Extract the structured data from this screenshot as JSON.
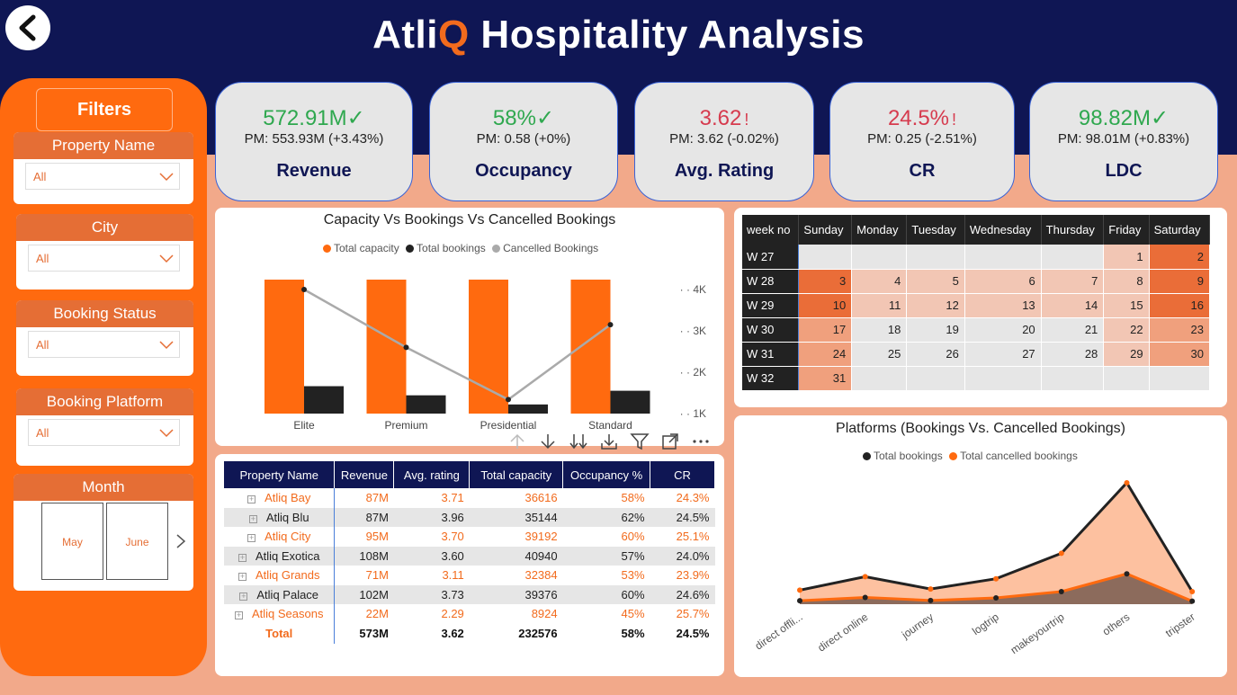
{
  "header": {
    "title_prefix": "Atli",
    "title_q": "Q",
    "title_rest": " Hospitality Analysis",
    "back_icon": "chevron-left-icon"
  },
  "filters": {
    "title": "Filters",
    "property_name": {
      "label": "Property Name",
      "value": "All"
    },
    "city": {
      "label": "City",
      "value": "All"
    },
    "booking_status": {
      "label": "Booking Status",
      "value": "All"
    },
    "booking_platform": {
      "label": "Booking Platform",
      "value": "All"
    },
    "month": {
      "label": "Month",
      "options": [
        "May",
        "June"
      ]
    }
  },
  "kpis": [
    {
      "value": "572.91M",
      "status": "good",
      "icon": "✓",
      "pm": "PM: 553.93M (+3.43%)",
      "label": "Revenue"
    },
    {
      "value": "58%",
      "status": "good",
      "icon": "✓",
      "pm": "PM: 0.58 (+0%)",
      "label": "Occupancy"
    },
    {
      "value": "3.62",
      "status": "bad",
      "icon": "!",
      "pm": "PM: 3.62 (-0.02%)",
      "label": "Avg. Rating"
    },
    {
      "value": "24.5%",
      "status": "bad",
      "icon": "!",
      "pm": "PM: 0.25 (-2.51%)",
      "label": "CR"
    },
    {
      "value": "98.82M",
      "status": "good",
      "icon": "✓",
      "pm": "PM: 98.01M (+0.83%)",
      "label": "LDC"
    }
  ],
  "colors": {
    "navy": "#0f1654",
    "orange": "#ff6a0f",
    "peach": "#f2a98a",
    "good": "#2fa84f",
    "bad": "#d63b4e"
  },
  "chart_data": [
    {
      "type": "bar",
      "title": "Capacity Vs Bookings Vs Cancelled Bookings",
      "categories": [
        "Elite",
        "Premium",
        "Presidential",
        "Standard"
      ],
      "series": [
        {
          "name": "Total capacity",
          "values": [
            44000,
            44000,
            44000,
            44000
          ],
          "color": "#ff6a0f"
        },
        {
          "name": "Total bookings",
          "values": [
            3000,
            2000,
            1000,
            2500
          ],
          "color": "#222222"
        },
        {
          "name": "Cancelled Bookings",
          "values": [
            4000,
            2600,
            1340,
            3150
          ],
          "color": "#aaaaaa",
          "axis": "secondary",
          "render": "line"
        }
      ],
      "y2_ticks": [
        "1K",
        "2K",
        "3K",
        "4K"
      ],
      "y2lim": [
        1000,
        4000
      ],
      "legend_position": "top"
    },
    {
      "type": "area",
      "title": "Platforms (Bookings Vs. Cancelled Bookings)",
      "categories": [
        "direct offli...",
        "direct online",
        "journey",
        "logtrip",
        "makeyourtrip",
        "others",
        "tripster"
      ],
      "series": [
        {
          "name": "Total bookings",
          "values": [
            6000,
            11800,
            6500,
            10900,
            21800,
            52000,
            5400
          ],
          "color": "#222222"
        },
        {
          "name": "Total cancelled bookings",
          "values": [
            1500,
            2900,
            1600,
            2700,
            5400,
            13000,
            1300
          ],
          "color": "#ff6a0f"
        }
      ],
      "legend_position": "top"
    }
  ],
  "property_table": {
    "headers": [
      "Property Name",
      "Revenue",
      "Avg. rating",
      "Total capacity",
      "Occupancy %",
      "CR"
    ],
    "rows": [
      {
        "name": "Atliq Bay",
        "revenue": "87M",
        "rating": "3.71",
        "capacity": "36616",
        "occupancy": "58%",
        "cr": "24.3%",
        "tone": "orange"
      },
      {
        "name": "Atliq Blu",
        "revenue": "87M",
        "rating": "3.96",
        "capacity": "35144",
        "occupancy": "62%",
        "cr": "24.5%",
        "tone": "dark"
      },
      {
        "name": "Atliq City",
        "revenue": "95M",
        "rating": "3.70",
        "capacity": "39192",
        "occupancy": "60%",
        "cr": "25.1%",
        "tone": "orange"
      },
      {
        "name": "Atliq Exotica",
        "revenue": "108M",
        "rating": "3.60",
        "capacity": "40940",
        "occupancy": "57%",
        "cr": "24.0%",
        "tone": "dark"
      },
      {
        "name": "Atliq Grands",
        "revenue": "71M",
        "rating": "3.11",
        "capacity": "32384",
        "occupancy": "53%",
        "cr": "23.9%",
        "tone": "orange"
      },
      {
        "name": "Atliq Palace",
        "revenue": "102M",
        "rating": "3.73",
        "capacity": "39376",
        "occupancy": "60%",
        "cr": "24.6%",
        "tone": "dark"
      },
      {
        "name": "Atliq Seasons",
        "revenue": "22M",
        "rating": "2.29",
        "capacity": "8924",
        "occupancy": "45%",
        "cr": "25.7%",
        "tone": "orange"
      }
    ],
    "total": {
      "name": "Total",
      "revenue": "573M",
      "rating": "3.62",
      "capacity": "232576",
      "occupancy": "58%",
      "cr": "24.5%"
    }
  },
  "calendar": {
    "headers": [
      "week no",
      "Sunday",
      "Monday",
      "Tuesday",
      "Wednesday",
      "Thursday",
      "Friday",
      "Saturday"
    ],
    "rows": [
      {
        "week": "W 27",
        "days": [
          "",
          "",
          "",
          "",
          "",
          "1",
          "2"
        ],
        "levels": [
          0,
          0,
          0,
          0,
          0,
          1,
          3
        ]
      },
      {
        "week": "W 28",
        "days": [
          "3",
          "4",
          "5",
          "6",
          "7",
          "8",
          "9"
        ],
        "levels": [
          3,
          1,
          1,
          1,
          1,
          1,
          3
        ]
      },
      {
        "week": "W 29",
        "days": [
          "10",
          "11",
          "12",
          "13",
          "14",
          "15",
          "16"
        ],
        "levels": [
          3,
          1,
          1,
          1,
          1,
          1,
          3
        ]
      },
      {
        "week": "W 30",
        "days": [
          "17",
          "18",
          "19",
          "20",
          "21",
          "22",
          "23"
        ],
        "levels": [
          2,
          0,
          0,
          0,
          0,
          1,
          2
        ]
      },
      {
        "week": "W 31",
        "days": [
          "24",
          "25",
          "26",
          "27",
          "28",
          "29",
          "30"
        ],
        "levels": [
          2,
          0,
          0,
          0,
          0,
          1,
          2
        ]
      },
      {
        "week": "W 32",
        "days": [
          "31",
          "",
          "",
          "",
          "",
          "",
          ""
        ],
        "levels": [
          2,
          0,
          0,
          0,
          0,
          0,
          0
        ]
      }
    ],
    "level_colors": [
      "#e6e6e6",
      "#f2c6b4",
      "#f0a07d",
      "#ea6d38"
    ]
  },
  "toolbar": [
    "arrow-up-icon",
    "arrow-down-icon",
    "double-arrow-down-icon",
    "expand-all-icon",
    "filter-icon",
    "focus-mode-icon",
    "more-options-icon"
  ]
}
